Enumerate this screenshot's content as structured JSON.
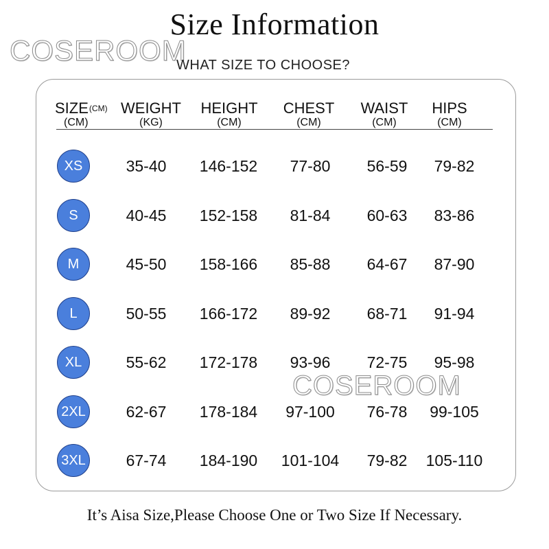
{
  "title": "Size Information",
  "watermark": "COSEROOM",
  "subtitle": "WHAT SIZE TO CHOOSE?",
  "headers": [
    {
      "label": "SIZE",
      "sup": "(CM)",
      "unit": "(CM)"
    },
    {
      "label": "WEIGHT",
      "unit": "(KG)"
    },
    {
      "label": "HEIGHT",
      "unit": "(CM)"
    },
    {
      "label": "CHEST",
      "unit": "(CM)"
    },
    {
      "label": "WAIST",
      "unit": "(CM)"
    },
    {
      "label": "HIPS",
      "unit": "(CM)"
    }
  ],
  "rows": [
    {
      "size": "XS",
      "weight": "35-40",
      "height": "146-152",
      "chest": "77-80",
      "waist": "56-59",
      "hips": "79-82"
    },
    {
      "size": "S",
      "weight": "40-45",
      "height": "152-158",
      "chest": "81-84",
      "waist": "60-63",
      "hips": "83-86"
    },
    {
      "size": "M",
      "weight": "45-50",
      "height": "158-166",
      "chest": "85-88",
      "waist": "64-67",
      "hips": "87-90"
    },
    {
      "size": "L",
      "weight": "50-55",
      "height": "166-172",
      "chest": "89-92",
      "waist": "68-71",
      "hips": "91-94"
    },
    {
      "size": "XL",
      "weight": "55-62",
      "height": "172-178",
      "chest": "93-96",
      "waist": "72-75",
      "hips": "95-98"
    },
    {
      "size": "2XL",
      "weight": "62-67",
      "height": "178-184",
      "chest": "97-100",
      "waist": "76-78",
      "hips": "99-105"
    },
    {
      "size": "3XL",
      "weight": "67-74",
      "height": "184-190",
      "chest": "101-104",
      "waist": "79-82",
      "hips": "105-110"
    }
  ],
  "footer": "It’s Aisa Size,Please Choose One or Two Size If Necessary.",
  "colors": {
    "badge": "#4a7fdc",
    "badge_border": "#1f3f8a",
    "panel_border": "#9a9a9a"
  }
}
